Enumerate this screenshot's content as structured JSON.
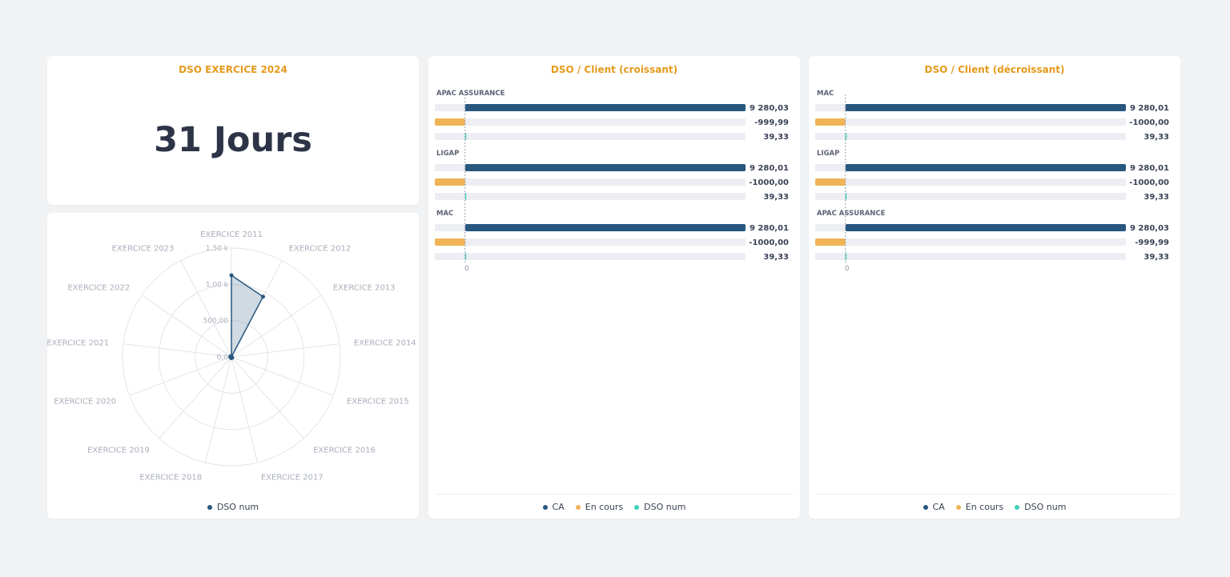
{
  "kpi": {
    "title": "DSO EXERCICE 2024",
    "value": "31 Jours"
  },
  "colors": {
    "title": "#e59a1c",
    "ca": "#27577f",
    "en_cours": "#f0b356",
    "dso": "#3fd0b9",
    "track": "#eceef3"
  },
  "legend": {
    "ca": "CA",
    "en_cours": "En cours",
    "dso": "DSO num"
  },
  "chart_data": [
    {
      "id": "radar",
      "type": "radar",
      "series": [
        {
          "name": "DSO num",
          "values": [
            1500,
            1250,
            0,
            0,
            0,
            20,
            20,
            20,
            0,
            0,
            20,
            20,
            0
          ]
        }
      ],
      "categories": [
        "EXERCICE 2011",
        "EXERCICE 2012",
        "EXERCICE 2013",
        "EXERCICE 2014",
        "EXERCICE 2015",
        "EXERCICE 2016",
        "EXERCICE 2017",
        "EXERCICE 2018",
        "EXERCICE 2019",
        "EXERCICE 2020",
        "EXERCICE 2021",
        "EXERCICE 2022",
        "EXERCICE 2023"
      ],
      "radial_ticks": [
        "0,0",
        "500,00",
        "1,00 k",
        "1,50 k"
      ],
      "rmax": 2000,
      "legend_position": "bottom"
    },
    {
      "id": "bars-asc",
      "type": "bar",
      "title": "DSO / Client (croissant)",
      "orientation": "horizontal",
      "groups": [
        {
          "label": "APAC ASSURANCE",
          "ca": 9280.03,
          "en_cours": -999.99,
          "dso": 39.33,
          "labels": [
            "9 280,03",
            "-999,99",
            "39,33"
          ]
        },
        {
          "label": "LIGAP",
          "ca": 9280.01,
          "en_cours": -1000.0,
          "dso": 39.33,
          "labels": [
            "9 280,01",
            "-1000,00",
            "39,33"
          ]
        },
        {
          "label": "MAC",
          "ca": 9280.01,
          "en_cours": -1000.0,
          "dso": 39.33,
          "labels": [
            "9 280,01",
            "-1000,00",
            "39,33"
          ]
        }
      ],
      "xmin": -1000,
      "xmax": 9280.03,
      "zero_label": "0",
      "legend_position": "bottom"
    },
    {
      "id": "bars-desc",
      "type": "bar",
      "title": "DSO / Client (décroissant)",
      "orientation": "horizontal",
      "groups": [
        {
          "label": "MAC",
          "ca": 9280.01,
          "en_cours": -1000.0,
          "dso": 39.33,
          "labels": [
            "9 280,01",
            "-1000,00",
            "39,33"
          ]
        },
        {
          "label": "LIGAP",
          "ca": 9280.01,
          "en_cours": -1000.0,
          "dso": 39.33,
          "labels": [
            "9 280,01",
            "-1000,00",
            "39,33"
          ]
        },
        {
          "label": "APAC ASSURANCE",
          "ca": 9280.03,
          "en_cours": -999.99,
          "dso": 39.33,
          "labels": [
            "9 280,03",
            "-999,99",
            "39,33"
          ]
        }
      ],
      "xmin": -1000,
      "xmax": 9280.03,
      "zero_label": "0",
      "legend_position": "bottom"
    }
  ]
}
